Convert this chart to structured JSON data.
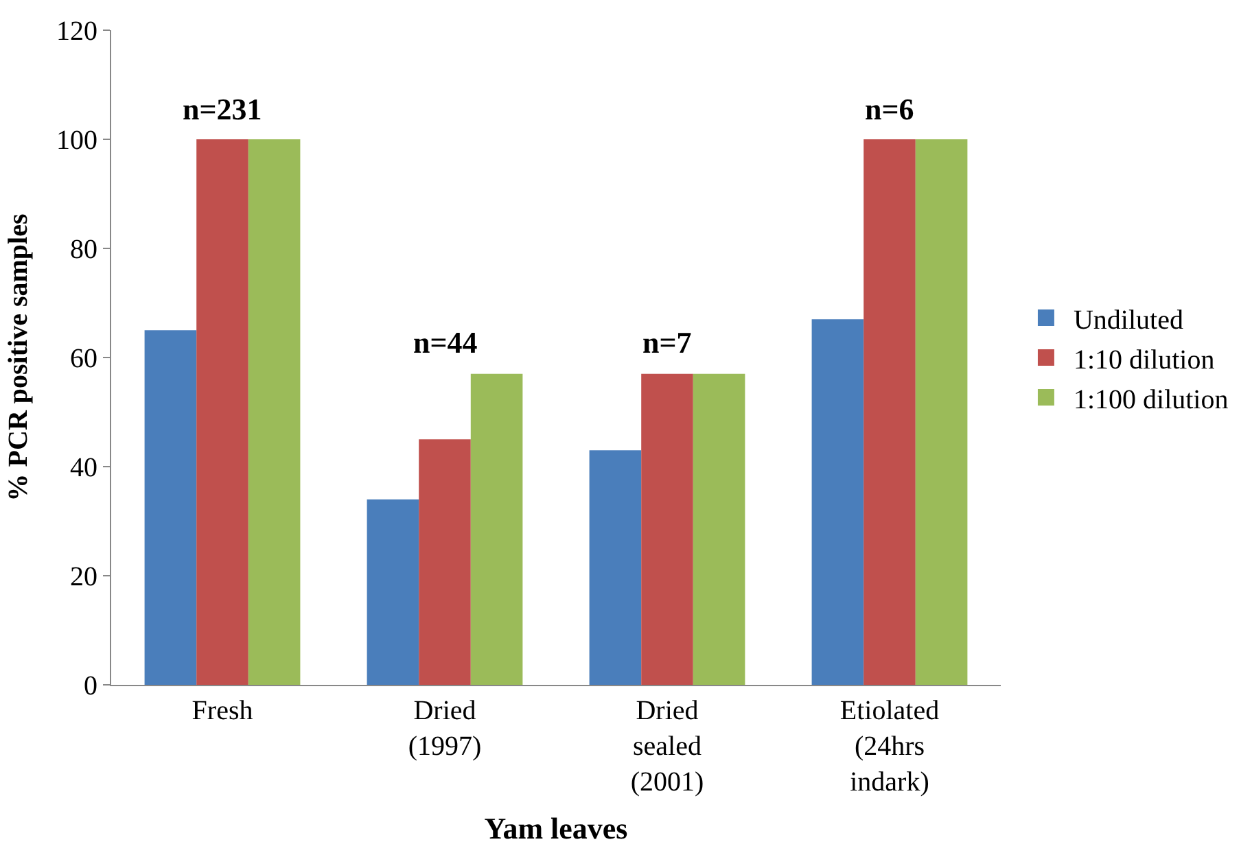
{
  "chart_data": {
    "type": "bar",
    "xlabel": "Yam leaves",
    "ylabel": "% PCR positive samples",
    "categories": [
      "Fresh",
      "Dried\n(1997)",
      "Dried\nsealed\n(2001)",
      "Etiolated\n(24hrs\nindark)"
    ],
    "series": [
      {
        "name": "Undiluted",
        "color": "#4a7ebb",
        "values": [
          65,
          34,
          43,
          67
        ]
      },
      {
        "name": "1:10 dilution",
        "color": "#c0504d",
        "values": [
          100,
          45,
          57,
          100
        ]
      },
      {
        "name": "1:100 dilution",
        "color": "#9bbb59",
        "values": [
          100,
          57,
          57,
          100
        ]
      }
    ],
    "ylim": [
      0,
      120
    ],
    "yticks": [
      0,
      20,
      40,
      60,
      80,
      100,
      120
    ],
    "legend": "right",
    "annotations": [
      "n=231",
      "n=44",
      "n=7",
      "n=6"
    ]
  }
}
